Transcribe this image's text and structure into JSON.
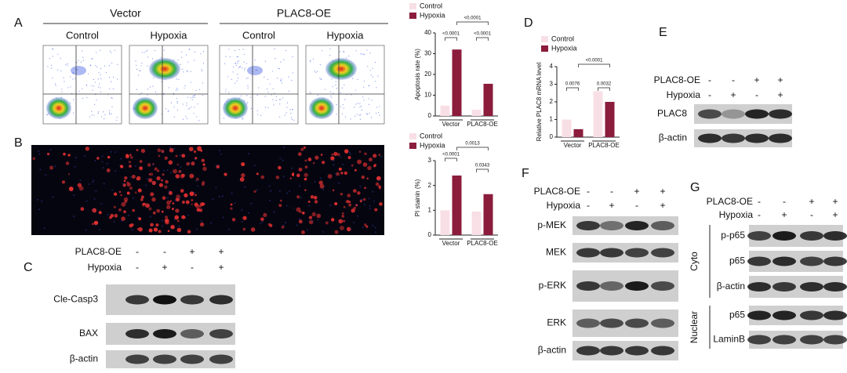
{
  "panel_labels": [
    "A",
    "B",
    "C",
    "D",
    "E",
    "F",
    "G"
  ],
  "flow": {
    "groups": [
      "Vector",
      "PLAC8-OE"
    ],
    "conditions": [
      "Control",
      "Hypoxia",
      "Control",
      "Hypoxia"
    ]
  },
  "blots": {
    "C": {
      "rows": [
        {
          "label": "PLAC8-OE",
          "signs": [
            "-",
            "-",
            "+",
            "+"
          ]
        },
        {
          "label": "Hypoxia",
          "signs": [
            "-",
            "+",
            "-",
            "+"
          ]
        }
      ],
      "bands": [
        "Cle-Casp3",
        "BAX",
        "β-actin"
      ]
    },
    "E": {
      "rows": [
        {
          "label": "PLAC8-OE",
          "signs": [
            "-",
            "-",
            "+",
            "+"
          ]
        },
        {
          "label": "Hypoxia",
          "signs": [
            "-",
            "+",
            "-",
            "+"
          ]
        }
      ],
      "bands": [
        "PLAC8",
        "β-actin"
      ]
    },
    "F": {
      "rows": [
        {
          "label": "PLAC8-OE",
          "signs": [
            "-",
            "-",
            "+",
            "+"
          ]
        },
        {
          "label": "Hypoxia",
          "signs": [
            "-",
            "+",
            "-",
            "+"
          ]
        }
      ],
      "bands": [
        "p-MEK",
        "MEK",
        "p-ERK",
        "ERK",
        "β-actin"
      ]
    },
    "G": {
      "rows": [
        {
          "label": "PLAC8-OE",
          "signs": [
            "-",
            "-",
            "+",
            "+"
          ]
        },
        {
          "label": "Hypoxia",
          "signs": [
            "-",
            "+",
            "-",
            "+"
          ]
        }
      ],
      "bands": [
        "p-p65",
        "p65",
        "β-actin",
        "p65",
        "LaminB"
      ],
      "sections": [
        "Cyto",
        "Nuclear"
      ]
    }
  },
  "chart_data": [
    {
      "type": "bar",
      "ylabel": "Apoptosis rate (%)",
      "categories": [
        "Vector",
        "PLAC8-OE"
      ],
      "series": [
        {
          "name": "Control",
          "color": "#f8dfe6",
          "values": [
            5,
            3
          ]
        },
        {
          "name": "Hypoxia",
          "color": "#8b1c3c",
          "values": [
            32,
            15.5
          ]
        }
      ],
      "ylim": [
        0,
        40
      ],
      "yticks": [
        0,
        10,
        20,
        30,
        40
      ],
      "annotations": [
        "<0.0001",
        "<0.0001",
        "<0.0001"
      ]
    },
    {
      "type": "bar",
      "ylabel": "PI stainin (%)",
      "categories": [
        "Vector",
        "PLAC8-OE"
      ],
      "series": [
        {
          "name": "Control",
          "color": "#f8dfe6",
          "values": [
            1.0,
            0.95
          ]
        },
        {
          "name": "Hypoxia",
          "color": "#8b1c3c",
          "values": [
            2.4,
            1.65
          ]
        }
      ],
      "ylim": [
        0,
        3
      ],
      "yticks": [
        0,
        1,
        2,
        3
      ],
      "annotations": [
        "<0.0001",
        "0.0343",
        "0.0013"
      ]
    },
    {
      "type": "bar",
      "ylabel": "Relative PLAC8 mRNA level",
      "categories": [
        "Vector",
        "PLAC8-OE"
      ],
      "series": [
        {
          "name": "Control",
          "color": "#f8dfe6",
          "values": [
            1.0,
            2.6
          ]
        },
        {
          "name": "Hypoxia",
          "color": "#8b1c3c",
          "values": [
            0.45,
            2.0
          ]
        }
      ],
      "ylim": [
        0,
        4
      ],
      "yticks": [
        0,
        1,
        2,
        3,
        4
      ],
      "annotations": [
        "0.0076",
        "0.0032",
        "<0.0001"
      ]
    }
  ]
}
